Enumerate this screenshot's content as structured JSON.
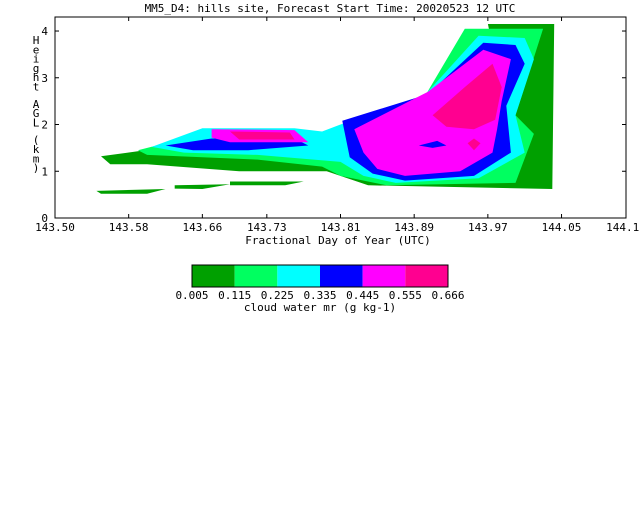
{
  "chart_data": {
    "type": "contour",
    "title": "MM5_D4: hills site,  Forecast Start Time: 20020523 12 UTC",
    "xlabel": "Fractional Day of Year (UTC)",
    "ylabel": "Height AGL (km)",
    "xlim": [
      143.5,
      144.12
    ],
    "ylim": [
      0,
      4.3
    ],
    "x_ticks": [
      "143.50",
      "143.58",
      "143.66",
      "143.73",
      "143.81",
      "143.89",
      "143.97",
      "144.05",
      "144.12"
    ],
    "y_ticks": [
      "0",
      "1",
      "2",
      "3",
      "4"
    ],
    "colorbar": {
      "label": "cloud water mr (g kg-1)",
      "levels": [
        "0.005",
        "0.115",
        "0.225",
        "0.335",
        "0.445",
        "0.555",
        "0.666"
      ],
      "colors": [
        "#00a000",
        "#00ff60",
        "#00ffff",
        "#0000ff",
        "#ff00ff",
        "#ff0090"
      ]
    },
    "regions": [
      {
        "level": 0,
        "points": [
          [
            143.55,
            1.32
          ],
          [
            143.66,
            1.62
          ],
          [
            143.78,
            1.67
          ],
          [
            143.84,
            2.2
          ],
          [
            143.92,
            2.75
          ],
          [
            143.98,
            3.2
          ],
          [
            143.97,
            4.15
          ],
          [
            144.042,
            4.15
          ],
          [
            144.04,
            0.62
          ],
          [
            143.84,
            0.7
          ],
          [
            143.795,
            1.0
          ],
          [
            143.7,
            1.0
          ],
          [
            143.6,
            1.15
          ],
          [
            143.56,
            1.15
          ]
        ]
      },
      {
        "level": 0,
        "points": [
          [
            143.545,
            0.58
          ],
          [
            143.62,
            0.62
          ],
          [
            143.6,
            0.52
          ],
          [
            143.55,
            0.52
          ]
        ]
      },
      {
        "level": 0,
        "points": [
          [
            143.63,
            0.7
          ],
          [
            143.69,
            0.72
          ],
          [
            143.66,
            0.62
          ],
          [
            143.63,
            0.63
          ]
        ]
      },
      {
        "level": 0,
        "points": [
          [
            143.69,
            0.78
          ],
          [
            143.77,
            0.78
          ],
          [
            143.75,
            0.7
          ],
          [
            143.69,
            0.7
          ]
        ]
      },
      {
        "level": 1,
        "points": [
          [
            143.59,
            1.45
          ],
          [
            143.66,
            1.8
          ],
          [
            143.76,
            1.8
          ],
          [
            143.8,
            1.8
          ],
          [
            143.83,
            2.0
          ],
          [
            143.9,
            2.55
          ],
          [
            143.945,
            4.05
          ],
          [
            144.03,
            4.05
          ],
          [
            144.0,
            2.2
          ],
          [
            144.02,
            1.8
          ],
          [
            144.0,
            0.75
          ],
          [
            143.86,
            0.7
          ],
          [
            143.81,
            0.9
          ],
          [
            143.79,
            1.1
          ],
          [
            143.72,
            1.25
          ],
          [
            143.66,
            1.3
          ],
          [
            143.6,
            1.35
          ]
        ]
      },
      {
        "level": 2,
        "points": [
          [
            143.605,
            1.52
          ],
          [
            143.66,
            1.92
          ],
          [
            143.76,
            1.92
          ],
          [
            143.79,
            1.85
          ],
          [
            143.81,
            2.0
          ],
          [
            143.9,
            2.6
          ],
          [
            143.96,
            3.9
          ],
          [
            144.01,
            3.85
          ],
          [
            144.02,
            3.4
          ],
          [
            144.0,
            2.2
          ],
          [
            144.01,
            1.4
          ],
          [
            143.96,
            0.85
          ],
          [
            143.87,
            0.75
          ],
          [
            143.835,
            0.9
          ],
          [
            143.81,
            1.2
          ],
          [
            143.72,
            1.35
          ],
          [
            143.64,
            1.4
          ]
        ]
      },
      {
        "level": 3,
        "points": [
          [
            143.62,
            1.55
          ],
          [
            143.67,
            1.7
          ],
          [
            143.76,
            1.7
          ],
          [
            143.775,
            1.55
          ],
          [
            143.71,
            1.45
          ],
          [
            143.65,
            1.45
          ]
        ]
      },
      {
        "level": 3,
        "points": [
          [
            143.812,
            2.08
          ],
          [
            143.905,
            2.65
          ],
          [
            143.965,
            3.75
          ],
          [
            144.0,
            3.7
          ],
          [
            144.01,
            3.3
          ],
          [
            143.99,
            2.4
          ],
          [
            143.995,
            1.4
          ],
          [
            143.955,
            0.9
          ],
          [
            143.88,
            0.8
          ],
          [
            143.845,
            0.95
          ],
          [
            143.82,
            1.3
          ]
        ]
      },
      {
        "level": 4,
        "points": [
          [
            143.67,
            1.9
          ],
          [
            143.76,
            1.88
          ],
          [
            143.775,
            1.62
          ],
          [
            143.69,
            1.62
          ],
          [
            143.67,
            1.72
          ]
        ]
      },
      {
        "level": 4,
        "points": [
          [
            143.825,
            1.9
          ],
          [
            143.905,
            2.7
          ],
          [
            143.965,
            3.6
          ],
          [
            143.995,
            3.4
          ],
          [
            143.985,
            2.5
          ],
          [
            143.98,
            1.9
          ],
          [
            143.975,
            1.4
          ],
          [
            143.94,
            1.0
          ],
          [
            143.88,
            0.9
          ],
          [
            143.85,
            1.05
          ],
          [
            143.835,
            1.4
          ]
        ]
      },
      {
        "level": 5,
        "points": [
          [
            143.69,
            1.85
          ],
          [
            143.755,
            1.83
          ],
          [
            143.76,
            1.68
          ],
          [
            143.7,
            1.68
          ]
        ]
      },
      {
        "level": 5,
        "points": [
          [
            143.91,
            2.2
          ],
          [
            143.945,
            2.8
          ],
          [
            143.975,
            3.3
          ],
          [
            143.985,
            2.8
          ],
          [
            143.978,
            2.1
          ],
          [
            143.955,
            1.9
          ],
          [
            143.925,
            1.95
          ]
        ]
      },
      {
        "level": 5,
        "points": [
          [
            143.948,
            1.6
          ],
          [
            143.955,
            1.45
          ],
          [
            143.962,
            1.6
          ],
          [
            143.955,
            1.7
          ]
        ]
      },
      {
        "level": 3,
        "points": [
          [
            143.895,
            1.55
          ],
          [
            143.915,
            1.65
          ],
          [
            143.925,
            1.55
          ],
          [
            143.91,
            1.5
          ]
        ]
      }
    ]
  }
}
